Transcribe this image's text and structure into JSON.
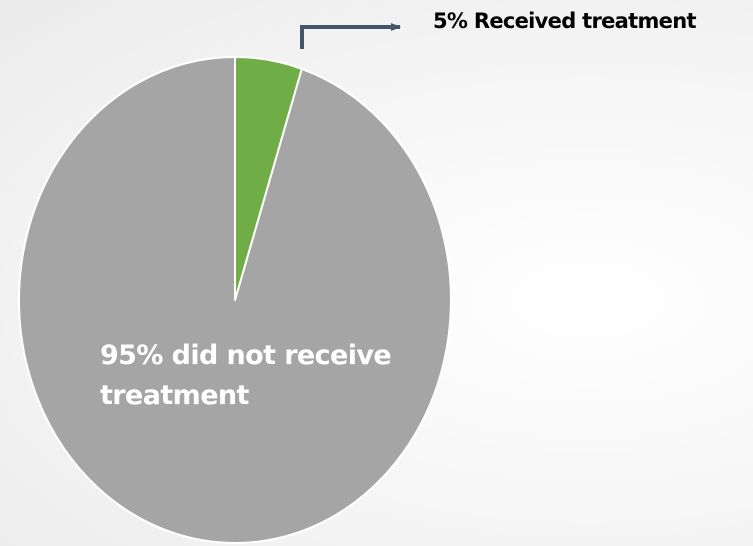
{
  "chart_data": {
    "type": "pie",
    "start_angle_deg": 0,
    "direction": "clockwise",
    "slices": [
      {
        "label": "5% Received treatment",
        "value": 5,
        "color": "#70ad47"
      },
      {
        "label": "95% did not receive treatment",
        "value": 95,
        "color": "#a5a5a5"
      }
    ],
    "annotations": {
      "received": "5% Received treatment",
      "not_received": "95% did not receive treatment"
    },
    "slice_border_color": "#ffffff",
    "callout_color": "#44546a"
  }
}
